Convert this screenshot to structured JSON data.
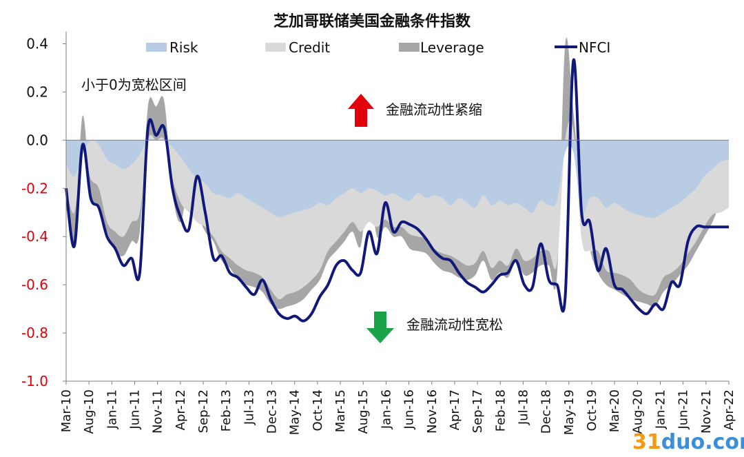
{
  "chart_data": {
    "type": "area",
    "title": "芝加哥联储美国金融条件指数",
    "xlabel": "",
    "ylabel": "",
    "ylim": [
      -1.0,
      0.45
    ],
    "yticks": [
      "0.4",
      "0.2",
      "0.0",
      "-0.2",
      "-0.4",
      "-0.6",
      "-0.8",
      "-1.0"
    ],
    "ytick_values": [
      0.4,
      0.2,
      0.0,
      -0.2,
      -0.4,
      -0.6,
      -0.8,
      -1.0
    ],
    "xticks": [
      "Mar-10",
      "Aug-10",
      "Jan-11",
      "Jun-11",
      "Nov-11",
      "Apr-12",
      "Sep-12",
      "Feb-13",
      "Jul-13",
      "Dec-13",
      "May-14",
      "Oct-14",
      "Mar-15",
      "Aug-15",
      "Jan-16",
      "Jun-16",
      "Nov-16",
      "Apr-17",
      "Sep-17",
      "Feb-18",
      "Jul-18",
      "Dec-18",
      "May-19",
      "Oct-19",
      "Mar-20",
      "Aug-20",
      "Jan-21",
      "Jun-21",
      "Nov-21",
      "Apr-22"
    ],
    "grid": false,
    "legend_position": "top",
    "annotations": {
      "easing_note": "小于0为宽松区间",
      "tightening": "金融流动性紧缩",
      "loosening": "金融流动性宽松"
    },
    "series": [
      {
        "name": "Risk",
        "kind": "area",
        "color": "#b8cde4",
        "values": [
          -0.1,
          -0.15,
          -0.06,
          0.0,
          -0.02,
          -0.08,
          -0.1,
          -0.12,
          -0.1,
          -0.06,
          0.0,
          0.0,
          0.0,
          -0.03,
          -0.07,
          -0.12,
          -0.16,
          -0.18,
          -0.22,
          -0.23,
          -0.24,
          -0.22,
          -0.24,
          -0.26,
          -0.28,
          -0.3,
          -0.32,
          -0.31,
          -0.3,
          -0.29,
          -0.28,
          -0.26,
          -0.27,
          -0.24,
          -0.22,
          -0.2,
          -0.22,
          -0.2,
          -0.21,
          -0.23,
          -0.22,
          -0.24,
          -0.25,
          -0.22,
          -0.24,
          -0.23,
          -0.24,
          -0.27,
          -0.24,
          -0.26,
          -0.28,
          -0.23,
          -0.27,
          -0.25,
          -0.27,
          -0.26,
          -0.28,
          -0.3,
          -0.25,
          -0.27,
          -0.25,
          -0.05,
          -0.05,
          -0.3,
          -0.24,
          -0.24,
          -0.28,
          -0.26,
          -0.28,
          -0.3,
          -0.31,
          -0.32,
          -0.32,
          -0.3,
          -0.28,
          -0.26,
          -0.23,
          -0.2,
          -0.15,
          -0.12,
          -0.09,
          -0.08
        ]
      },
      {
        "name": "Credit",
        "kind": "area",
        "color": "#d9d9d9",
        "values": [
          -0.2,
          -0.3,
          -0.04,
          -0.16,
          -0.2,
          -0.34,
          -0.38,
          -0.4,
          -0.34,
          -0.3,
          0.0,
          0.0,
          0.0,
          -0.16,
          -0.26,
          -0.3,
          -0.34,
          -0.36,
          -0.4,
          -0.46,
          -0.49,
          -0.52,
          -0.54,
          -0.55,
          -0.57,
          -0.62,
          -0.66,
          -0.64,
          -0.63,
          -0.61,
          -0.58,
          -0.54,
          -0.46,
          -0.42,
          -0.38,
          -0.34,
          -0.38,
          -0.34,
          -0.36,
          -0.33,
          -0.36,
          -0.36,
          -0.39,
          -0.4,
          -0.41,
          -0.45,
          -0.47,
          -0.48,
          -0.5,
          -0.52,
          -0.51,
          -0.46,
          -0.53,
          -0.5,
          -0.52,
          -0.45,
          -0.5,
          -0.49,
          -0.46,
          -0.46,
          -0.51,
          0.0,
          0.04,
          -0.41,
          -0.46,
          -0.46,
          -0.54,
          -0.55,
          -0.56,
          -0.58,
          -0.62,
          -0.64,
          -0.64,
          -0.57,
          -0.55,
          -0.52,
          -0.47,
          -0.42,
          -0.36,
          -0.31,
          -0.3,
          -0.28
        ]
      },
      {
        "name": "Leverage",
        "kind": "area",
        "color": "#a6a6a6",
        "values": [
          -0.28,
          -0.42,
          0.1,
          -0.22,
          -0.28,
          -0.38,
          -0.46,
          -0.48,
          -0.42,
          -0.38,
          0.14,
          0.14,
          0.16,
          -0.22,
          -0.34,
          -0.18,
          -0.3,
          -0.38,
          -0.42,
          -0.5,
          -0.53,
          -0.58,
          -0.6,
          -0.61,
          -0.63,
          -0.68,
          -0.7,
          -0.69,
          -0.68,
          -0.66,
          -0.62,
          -0.58,
          -0.5,
          -0.46,
          -0.42,
          -0.38,
          -0.44,
          -0.2,
          -0.4,
          -0.36,
          -0.4,
          -0.4,
          -0.45,
          -0.46,
          -0.47,
          -0.51,
          -0.54,
          -0.55,
          -0.57,
          -0.58,
          -0.56,
          -0.5,
          -0.58,
          -0.55,
          -0.57,
          -0.5,
          -0.56,
          -0.55,
          -0.52,
          -0.52,
          -0.56,
          0.4,
          0.12,
          -0.24,
          -0.45,
          -0.55,
          -0.6,
          -0.62,
          -0.64,
          -0.66,
          -0.67,
          -0.68,
          -0.69,
          -0.63,
          -0.6,
          -0.56,
          -0.52,
          -0.46,
          -0.4,
          -0.34,
          -0.26,
          -0.23
        ]
      },
      {
        "name": "NFCI",
        "kind": "line",
        "color": "#10197a",
        "values": [
          -0.2,
          -0.44,
          -0.02,
          -0.24,
          -0.28,
          -0.4,
          -0.45,
          -0.52,
          -0.49,
          -0.55,
          0.05,
          0.02,
          0.05,
          -0.2,
          -0.32,
          -0.37,
          -0.15,
          -0.3,
          -0.49,
          -0.48,
          -0.55,
          -0.57,
          -0.61,
          -0.64,
          -0.58,
          -0.66,
          -0.72,
          -0.74,
          -0.73,
          -0.75,
          -0.72,
          -0.65,
          -0.6,
          -0.52,
          -0.5,
          -0.54,
          -0.55,
          -0.38,
          -0.47,
          -0.26,
          -0.38,
          -0.34,
          -0.35,
          -0.37,
          -0.41,
          -0.46,
          -0.49,
          -0.5,
          -0.55,
          -0.59,
          -0.61,
          -0.63,
          -0.6,
          -0.56,
          -0.55,
          -0.5,
          -0.6,
          -0.61,
          -0.43,
          -0.58,
          -0.6,
          -0.65,
          0.33,
          -0.3,
          -0.34,
          -0.54,
          -0.45,
          -0.6,
          -0.62,
          -0.66,
          -0.7,
          -0.72,
          -0.68,
          -0.7,
          -0.59,
          -0.6,
          -0.42,
          -0.36,
          -0.36,
          -0.36,
          -0.36,
          -0.36
        ]
      }
    ]
  },
  "watermark": "31duo.com",
  "colors": {
    "positive_tick": "#111111",
    "negative_tick": "#e3000b",
    "arrow_up": "#e3000b",
    "arrow_down": "#1aa348"
  }
}
